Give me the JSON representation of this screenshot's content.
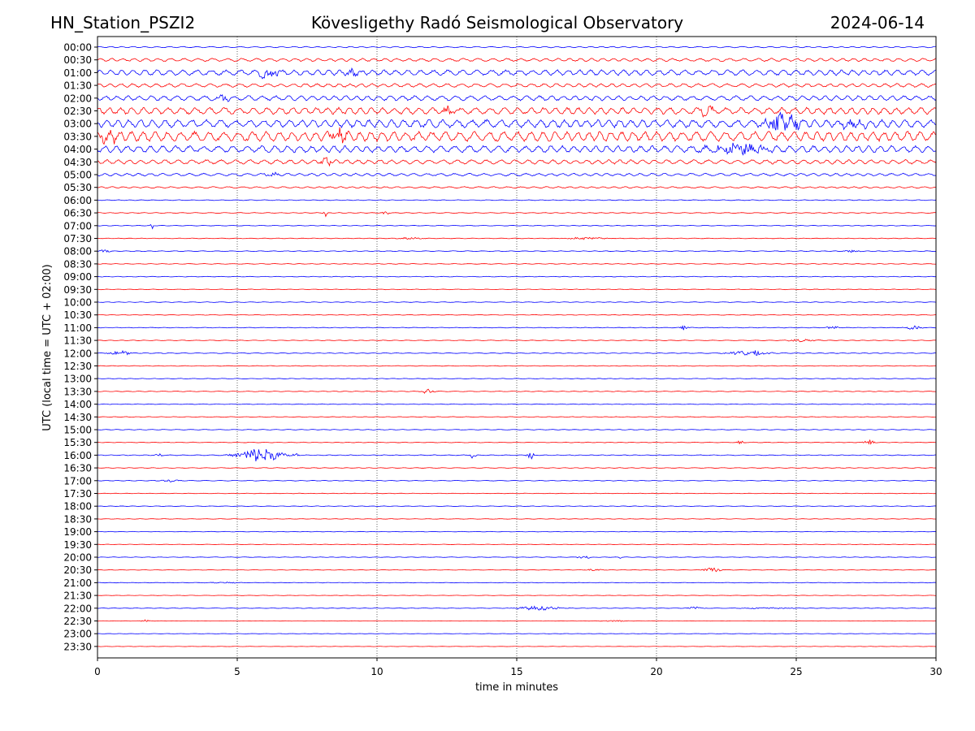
{
  "header": {
    "station": "HN_Station_PSZI2",
    "observatory": "Kövesligethy Radó Seismological Observatory",
    "date": "2024-06-14"
  },
  "colors": {
    "even_trace": "#0000ff",
    "odd_trace": "#ff0000",
    "axis": "#000000",
    "grid": "#000000"
  },
  "chart_data": {
    "type": "line",
    "subtype": "helicorder",
    "title": "Kövesligethy Radó Seismological Observatory",
    "xlabel": "time in minutes",
    "ylabel": "UTC (local time = UTC + 02:00)",
    "xlim": [
      0,
      30
    ],
    "x_ticks": [
      "0",
      "5",
      "10",
      "15",
      "20",
      "25",
      "30"
    ],
    "grid": "vertical dotted at x ticks",
    "trace_labels": [
      "00:00",
      "00:30",
      "01:00",
      "01:30",
      "02:00",
      "02:30",
      "03:00",
      "03:30",
      "04:00",
      "04:30",
      "05:00",
      "05:30",
      "06:00",
      "06:30",
      "07:00",
      "07:30",
      "08:00",
      "08:30",
      "09:00",
      "09:30",
      "10:00",
      "10:30",
      "11:00",
      "11:30",
      "12:00",
      "12:30",
      "13:00",
      "13:30",
      "14:00",
      "14:30",
      "15:00",
      "15:30",
      "16:00",
      "16:30",
      "17:00",
      "17:30",
      "18:00",
      "18:30",
      "19:00",
      "19:30",
      "20:00",
      "20:30",
      "21:00",
      "21:30",
      "22:00",
      "22:30",
      "23:00",
      "23:30"
    ],
    "trace_noise_level": [
      0.2,
      0.5,
      0.9,
      0.6,
      0.8,
      1.1,
      1.3,
      1.6,
      1.1,
      0.7,
      0.45,
      0.25,
      0.12,
      0.12,
      0.1,
      0.1,
      0.12,
      0.1,
      0.1,
      0.1,
      0.1,
      0.1,
      0.1,
      0.1,
      0.12,
      0.1,
      0.1,
      0.1,
      0.1,
      0.1,
      0.1,
      0.1,
      0.12,
      0.1,
      0.1,
      0.08,
      0.08,
      0.08,
      0.08,
      0.08,
      0.08,
      0.08,
      0.08,
      0.06,
      0.08,
      0.06,
      0.06,
      0.05
    ],
    "events": [
      {
        "trace": 2,
        "minute": 6.1,
        "amplitude": 1.6,
        "duration_min": 0.8
      },
      {
        "trace": 2,
        "minute": 9.2,
        "amplitude": 0.8,
        "duration_min": 0.6
      },
      {
        "trace": 4,
        "minute": 4.5,
        "amplitude": 0.9,
        "duration_min": 0.5
      },
      {
        "trace": 5,
        "minute": 12.6,
        "amplitude": 1.0,
        "duration_min": 0.5
      },
      {
        "trace": 5,
        "minute": 21.8,
        "amplitude": 1.0,
        "duration_min": 0.6
      },
      {
        "trace": 6,
        "minute": 24.5,
        "amplitude": 2.8,
        "duration_min": 1.2
      },
      {
        "trace": 6,
        "minute": 27.0,
        "amplitude": 1.6,
        "duration_min": 0.8
      },
      {
        "trace": 7,
        "minute": 8.6,
        "amplitude": 2.0,
        "duration_min": 0.6
      },
      {
        "trace": 7,
        "minute": 0.4,
        "amplitude": 1.6,
        "duration_min": 0.6
      },
      {
        "trace": 8,
        "minute": 23.0,
        "amplitude": 1.4,
        "duration_min": 2.0
      },
      {
        "trace": 9,
        "minute": 8.2,
        "amplitude": 1.0,
        "duration_min": 0.4
      },
      {
        "trace": 10,
        "minute": 6.3,
        "amplitude": 0.6,
        "duration_min": 0.5
      },
      {
        "trace": 13,
        "minute": 8.15,
        "amplitude": 1.3,
        "duration_min": 0.08
      },
      {
        "trace": 13,
        "minute": 10.3,
        "amplitude": 0.5,
        "duration_min": 0.2
      },
      {
        "trace": 14,
        "minute": 1.95,
        "amplitude": 1.1,
        "duration_min": 0.06
      },
      {
        "trace": 15,
        "minute": 11.2,
        "amplitude": 0.3,
        "duration_min": 0.8
      },
      {
        "trace": 15,
        "minute": 17.5,
        "amplitude": 0.3,
        "duration_min": 1.5
      },
      {
        "trace": 16,
        "minute": 0.2,
        "amplitude": 0.4,
        "duration_min": 0.4
      },
      {
        "trace": 16,
        "minute": 27.0,
        "amplitude": 0.4,
        "duration_min": 0.4
      },
      {
        "trace": 22,
        "minute": 21.0,
        "amplitude": 0.7,
        "duration_min": 0.2
      },
      {
        "trace": 22,
        "minute": 26.3,
        "amplitude": 0.4,
        "duration_min": 0.4
      },
      {
        "trace": 22,
        "minute": 29.2,
        "amplitude": 0.5,
        "duration_min": 0.6
      },
      {
        "trace": 23,
        "minute": 25.2,
        "amplitude": 0.4,
        "duration_min": 1.0
      },
      {
        "trace": 24,
        "minute": 0.8,
        "amplitude": 0.7,
        "duration_min": 0.6
      },
      {
        "trace": 24,
        "minute": 23.3,
        "amplitude": 0.9,
        "duration_min": 1.2
      },
      {
        "trace": 27,
        "minute": 11.8,
        "amplitude": 0.7,
        "duration_min": 0.4
      },
      {
        "trace": 31,
        "minute": 23.0,
        "amplitude": 0.6,
        "duration_min": 0.15
      },
      {
        "trace": 31,
        "minute": 27.6,
        "amplitude": 0.9,
        "duration_min": 0.3
      },
      {
        "trace": 32,
        "minute": 2.2,
        "amplitude": 0.5,
        "duration_min": 0.2
      },
      {
        "trace": 32,
        "minute": 5.8,
        "amplitude": 2.2,
        "duration_min": 1.4
      },
      {
        "trace": 32,
        "minute": 7.1,
        "amplitude": 0.5,
        "duration_min": 0.2
      },
      {
        "trace": 32,
        "minute": 13.4,
        "amplitude": 0.9,
        "duration_min": 0.25
      },
      {
        "trace": 32,
        "minute": 15.5,
        "amplitude": 1.2,
        "duration_min": 0.2
      },
      {
        "trace": 34,
        "minute": 2.6,
        "amplitude": 0.4,
        "duration_min": 0.6
      },
      {
        "trace": 40,
        "minute": 17.4,
        "amplitude": 0.4,
        "duration_min": 0.5
      },
      {
        "trace": 40,
        "minute": 18.7,
        "amplitude": 0.5,
        "duration_min": 0.05
      },
      {
        "trace": 41,
        "minute": 22.0,
        "amplitude": 0.6,
        "duration_min": 0.6
      },
      {
        "trace": 41,
        "minute": 17.8,
        "amplitude": 0.2,
        "duration_min": 0.6
      },
      {
        "trace": 42,
        "minute": 4.6,
        "amplitude": 0.2,
        "duration_min": 1.2
      },
      {
        "trace": 44,
        "minute": 15.8,
        "amplitude": 0.6,
        "duration_min": 1.4
      },
      {
        "trace": 44,
        "minute": 21.4,
        "amplitude": 0.5,
        "duration_min": 0.5
      },
      {
        "trace": 44,
        "minute": 24.0,
        "amplitude": 0.2,
        "duration_min": 1.8
      },
      {
        "trace": 45,
        "minute": 1.7,
        "amplitude": 0.4,
        "duration_min": 0.2
      },
      {
        "trace": 45,
        "minute": 18.5,
        "amplitude": 0.2,
        "duration_min": 0.8
      }
    ]
  }
}
